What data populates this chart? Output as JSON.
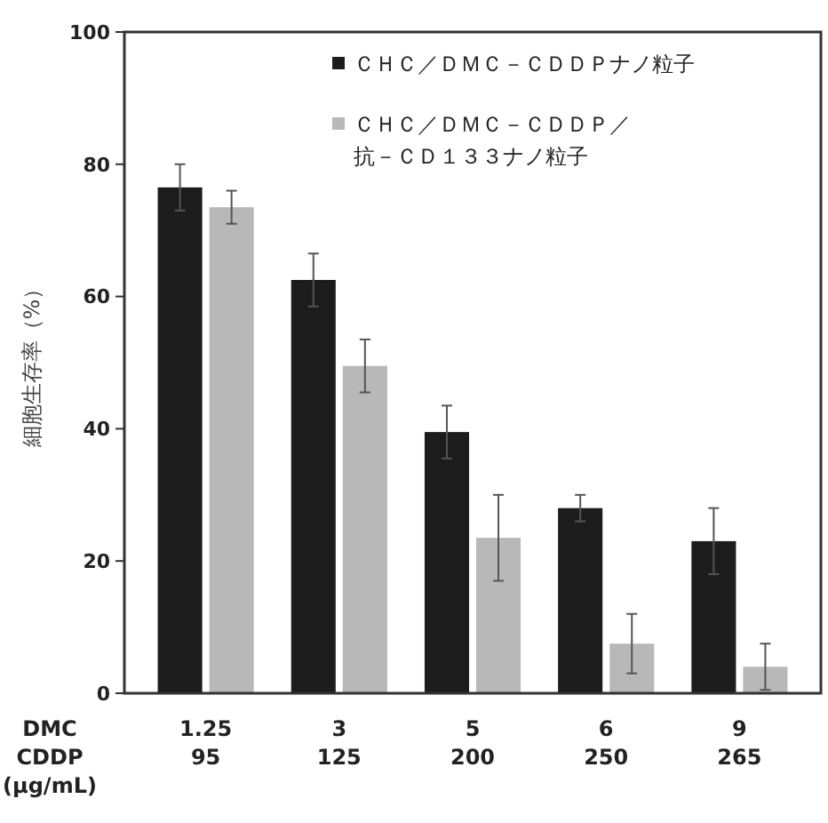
{
  "chart_data": {
    "type": "bar",
    "ylabel": "細胞生存率（%）",
    "xlabel": "DMC\nCDDP\n(μg/mL)",
    "categories": [
      "1.25\n95",
      "3\n125",
      "5\n200",
      "6\n250",
      "9\n265"
    ],
    "series": [
      {
        "name": "ＣＨＣ／ＤＭＣ－ＣＤＤＰナノ粒子",
        "color": "#1c1c1c",
        "values": [
          76.5,
          62.5,
          39.5,
          28,
          23
        ],
        "errors": [
          3.5,
          4,
          4,
          2,
          5
        ]
      },
      {
        "name": "ＣＨＣ／ＤＭＣ－ＣＤＤＰ／抗－ＣＤ１３３ナノ粒子",
        "color": "#b8b8b8",
        "values": [
          73.5,
          49.5,
          23.5,
          7.5,
          4
        ],
        "errors": [
          2.5,
          4,
          6.5,
          4.5,
          3.5
        ]
      }
    ],
    "ylim": [
      0,
      100
    ],
    "yticks": [
      0,
      20,
      40,
      60,
      80,
      100
    ],
    "legend": "top right"
  }
}
